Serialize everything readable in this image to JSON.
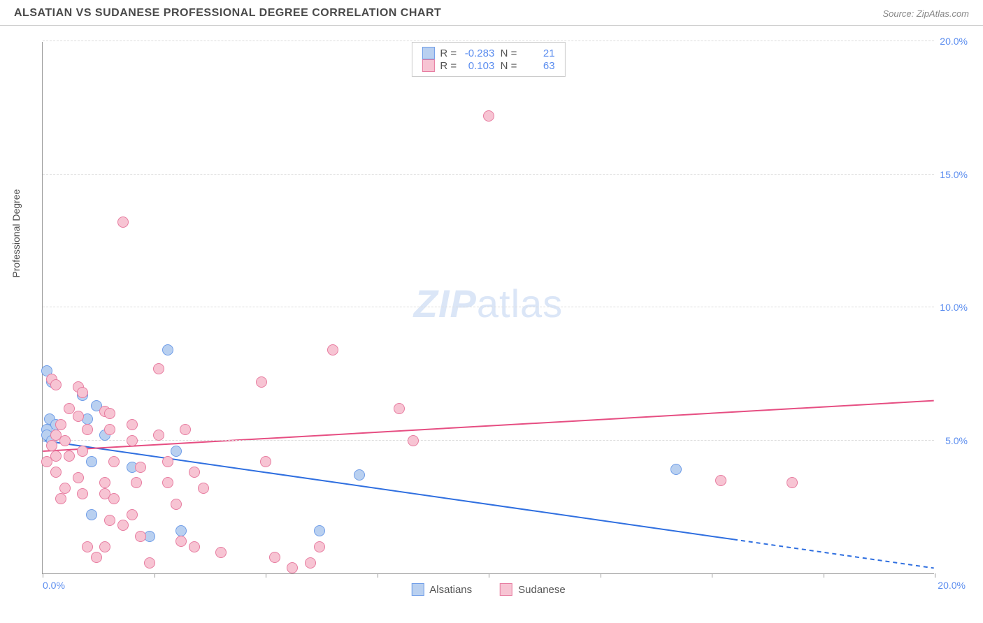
{
  "header": {
    "title": "ALSATIAN VS SUDANESE PROFESSIONAL DEGREE CORRELATION CHART",
    "source": "Source: ZipAtlas.com"
  },
  "chart": {
    "type": "scatter",
    "ylabel": "Professional Degree",
    "watermark_bold": "ZIP",
    "watermark_light": "atlas",
    "background_color": "#ffffff",
    "grid_color": "#dddddd",
    "axis_color": "#999999",
    "tick_label_color": "#5b8def",
    "xlim": [
      0,
      20
    ],
    "ylim": [
      0,
      20
    ],
    "ytick_step": 5,
    "ytick_labels": [
      "5.0%",
      "10.0%",
      "15.0%",
      "20.0%"
    ],
    "ytick_values": [
      5,
      10,
      15,
      20
    ],
    "xtick_labels_ends": {
      "left": "0.0%",
      "right": "20.0%"
    },
    "xtick_marks": [
      0,
      2.5,
      5,
      7.5,
      10,
      12.5,
      15,
      17.5,
      20
    ],
    "point_radius": 8,
    "series": [
      {
        "name": "Alsatians",
        "fill_color": "#b9d0f0",
        "stroke_color": "#6f9de8",
        "R": "-0.283",
        "N": "21",
        "trend": {
          "y_at_x0": 5.0,
          "y_at_x20": 0.2,
          "solid_until_x": 15.5,
          "color": "#2f6fe0",
          "width": 2
        },
        "points": [
          [
            0.1,
            7.6
          ],
          [
            0.2,
            7.2
          ],
          [
            0.15,
            5.8
          ],
          [
            0.3,
            5.6
          ],
          [
            0.1,
            5.4
          ],
          [
            0.1,
            5.2
          ],
          [
            0.2,
            5.0
          ],
          [
            0.9,
            6.7
          ],
          [
            1.2,
            6.3
          ],
          [
            1.0,
            5.8
          ],
          [
            1.4,
            5.2
          ],
          [
            1.1,
            4.2
          ],
          [
            1.1,
            2.2
          ],
          [
            2.0,
            4.0
          ],
          [
            2.4,
            1.4
          ],
          [
            2.8,
            8.4
          ],
          [
            3.0,
            4.6
          ],
          [
            3.1,
            1.6
          ],
          [
            6.2,
            1.6
          ],
          [
            7.1,
            3.7
          ],
          [
            14.2,
            3.9
          ]
        ]
      },
      {
        "name": "Sudanese",
        "fill_color": "#f7c4d3",
        "stroke_color": "#e77ca0",
        "R": "0.103",
        "N": "63",
        "trend": {
          "y_at_x0": 4.6,
          "y_at_x20": 6.5,
          "solid_until_x": 20,
          "color": "#e64e82",
          "width": 2
        },
        "points": [
          [
            0.2,
            7.3
          ],
          [
            0.3,
            7.1
          ],
          [
            0.4,
            5.6
          ],
          [
            0.3,
            5.2
          ],
          [
            0.2,
            4.8
          ],
          [
            0.3,
            4.4
          ],
          [
            0.1,
            4.2
          ],
          [
            0.3,
            3.8
          ],
          [
            0.5,
            3.2
          ],
          [
            0.4,
            2.8
          ],
          [
            0.8,
            7.0
          ],
          [
            0.9,
            6.8
          ],
          [
            0.8,
            5.9
          ],
          [
            1.0,
            5.4
          ],
          [
            0.9,
            4.6
          ],
          [
            0.8,
            3.6
          ],
          [
            0.9,
            3.0
          ],
          [
            1.0,
            1.0
          ],
          [
            1.2,
            0.6
          ],
          [
            1.4,
            6.1
          ],
          [
            1.5,
            6.0
          ],
          [
            1.5,
            5.4
          ],
          [
            1.6,
            4.2
          ],
          [
            1.4,
            3.4
          ],
          [
            1.4,
            3.0
          ],
          [
            1.6,
            2.8
          ],
          [
            1.5,
            2.0
          ],
          [
            1.8,
            1.8
          ],
          [
            1.4,
            1.0
          ],
          [
            2.0,
            5.6
          ],
          [
            2.0,
            5.0
          ],
          [
            2.2,
            4.0
          ],
          [
            2.1,
            3.4
          ],
          [
            2.0,
            2.2
          ],
          [
            2.2,
            1.4
          ],
          [
            2.4,
            0.4
          ],
          [
            2.6,
            7.7
          ],
          [
            2.6,
            5.2
          ],
          [
            2.8,
            4.2
          ],
          [
            2.8,
            3.4
          ],
          [
            3.0,
            2.6
          ],
          [
            3.1,
            1.2
          ],
          [
            3.2,
            5.4
          ],
          [
            3.4,
            3.8
          ],
          [
            3.6,
            3.2
          ],
          [
            3.4,
            1.0
          ],
          [
            4.0,
            0.8
          ],
          [
            5.0,
            4.2
          ],
          [
            4.9,
            7.2
          ],
          [
            5.2,
            0.6
          ],
          [
            5.6,
            0.2
          ],
          [
            6.2,
            1.0
          ],
          [
            6.0,
            0.4
          ],
          [
            6.5,
            8.4
          ],
          [
            8.0,
            6.2
          ],
          [
            8.3,
            5.0
          ],
          [
            1.8,
            13.2
          ],
          [
            10.0,
            17.2
          ],
          [
            15.2,
            3.5
          ],
          [
            16.8,
            3.4
          ],
          [
            0.5,
            5.0
          ],
          [
            0.6,
            4.4
          ],
          [
            0.6,
            6.2
          ]
        ]
      }
    ],
    "legend_bottom": [
      {
        "label": "Alsatians",
        "fill": "#b9d0f0",
        "stroke": "#6f9de8"
      },
      {
        "label": "Sudanese",
        "fill": "#f7c4d3",
        "stroke": "#e77ca0"
      }
    ]
  }
}
